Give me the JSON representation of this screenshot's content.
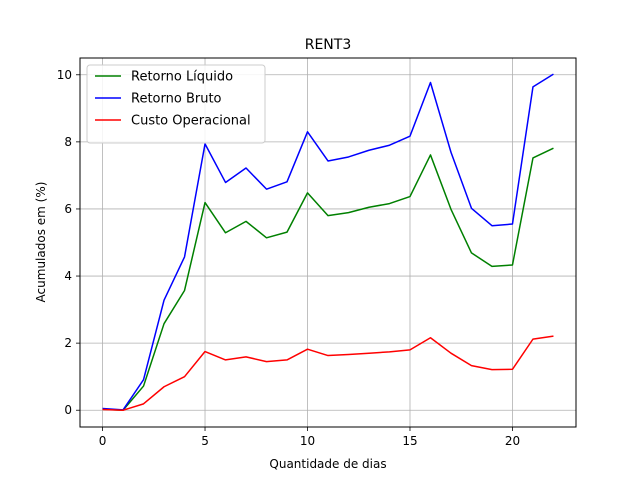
{
  "chart_data": {
    "type": "line",
    "title": "RENT3",
    "xlabel": "Quantidade de dias",
    "ylabel": "Acumulados em (%)",
    "xlim": [
      -1.1,
      23.1
    ],
    "ylim": [
      -0.5,
      10.5
    ],
    "xticks": [
      0,
      5,
      10,
      15,
      20
    ],
    "yticks": [
      0,
      2,
      4,
      6,
      8,
      10
    ],
    "grid": true,
    "legend_position": "upper-left",
    "x": [
      0,
      1,
      2,
      3,
      4,
      5,
      6,
      7,
      8,
      9,
      10,
      11,
      12,
      13,
      14,
      15,
      16,
      17,
      18,
      19,
      20,
      21,
      22
    ],
    "series": [
      {
        "name": "Retorno Líquido",
        "color": "#008000",
        "values": [
          0.03,
          0.0,
          0.72,
          2.58,
          3.57,
          6.19,
          5.29,
          5.63,
          5.14,
          5.31,
          6.48,
          5.8,
          5.89,
          6.05,
          6.16,
          6.37,
          7.61,
          5.99,
          4.69,
          4.29,
          4.33,
          7.52,
          7.81
        ]
      },
      {
        "name": "Retorno Bruto",
        "color": "#0000ff",
        "values": [
          0.05,
          0.01,
          0.91,
          3.28,
          4.57,
          7.94,
          6.79,
          7.22,
          6.59,
          6.81,
          8.3,
          7.43,
          7.55,
          7.75,
          7.9,
          8.17,
          9.77,
          7.69,
          6.02,
          5.5,
          5.55,
          9.64,
          10.02
        ]
      },
      {
        "name": "Custo Operacional",
        "color": "#ff0000",
        "values": [
          0.02,
          0.0,
          0.19,
          0.7,
          1.0,
          1.75,
          1.5,
          1.59,
          1.45,
          1.5,
          1.82,
          1.63,
          1.66,
          1.7,
          1.74,
          1.8,
          2.16,
          1.7,
          1.33,
          1.21,
          1.22,
          2.12,
          2.21
        ]
      }
    ]
  }
}
